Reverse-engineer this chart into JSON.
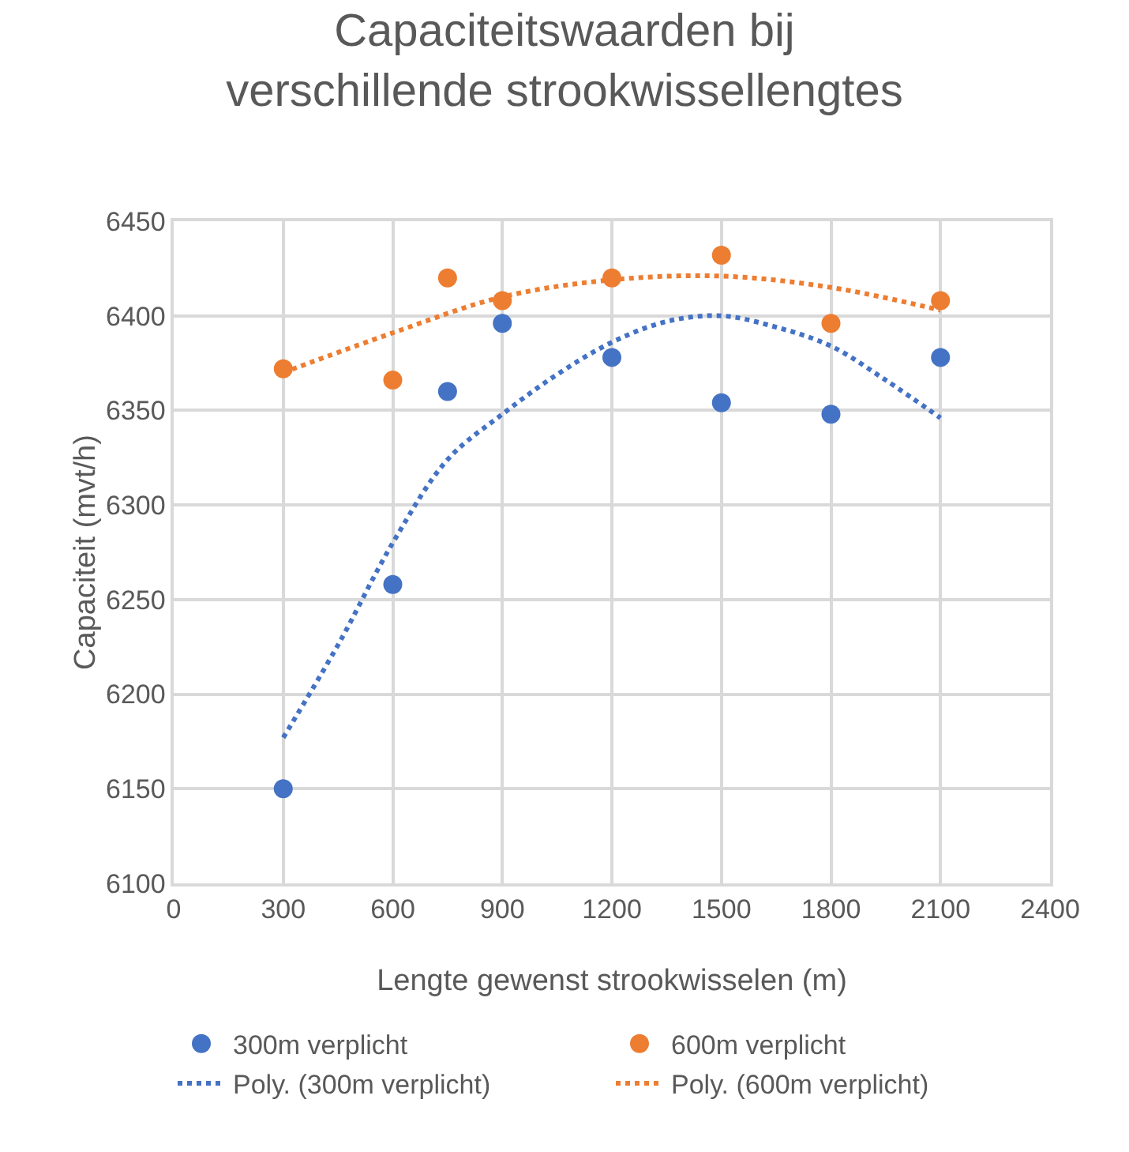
{
  "chart_data": {
    "type": "scatter",
    "title": "Capaciteitswaarden bij\nverschillende strookwissellengtes",
    "xlabel": "Lengte gewenst strookwisselen (m)",
    "ylabel": "Capaciteit (mvt/h)",
    "x": [
      300,
      600,
      750,
      900,
      1200,
      1500,
      1800,
      2100
    ],
    "series": [
      {
        "name": "300m verplicht",
        "color": "#4472c4",
        "marker": "circle",
        "values": [
          6150,
          6258,
          6360,
          6396,
          6378,
          6354,
          6348,
          6378
        ]
      },
      {
        "name": "600m verplicht",
        "color": "#ed7d31",
        "marker": "circle",
        "values": [
          6372,
          6366,
          6420,
          6408,
          6420,
          6432,
          6396,
          6408
        ]
      },
      {
        "name": "Poly. (300m verplicht)",
        "type": "line",
        "line_style": "dotted",
        "marker": "none",
        "color": "#4472c4",
        "x": [
          300,
          450,
          600,
          750,
          900,
          1050,
          1200,
          1350,
          1500,
          1650,
          1800,
          1950,
          2100
        ],
        "values": [
          6177,
          6226,
          6280,
          6324,
          6348,
          6369,
          6386,
          6397,
          6400,
          6394,
          6384,
          6366,
          6346
        ]
      },
      {
        "name": "Poly. (600m verplicht)",
        "type": "line",
        "line_style": "dotted",
        "marker": "none",
        "color": "#ed7d31",
        "x": [
          300,
          600,
          900,
          1200,
          1500,
          1800,
          2100
        ],
        "values": [
          6370,
          6391,
          6410,
          6419,
          6421,
          6415,
          6403
        ]
      }
    ],
    "xlim": [
      0,
      2400
    ],
    "xticks": [
      0,
      300,
      600,
      900,
      1200,
      1500,
      1800,
      2100,
      2400
    ],
    "ylim": [
      6100,
      6450
    ],
    "yticks": [
      6100,
      6150,
      6200,
      6250,
      6300,
      6350,
      6400,
      6450
    ],
    "grid": true,
    "legend": "bottom"
  }
}
